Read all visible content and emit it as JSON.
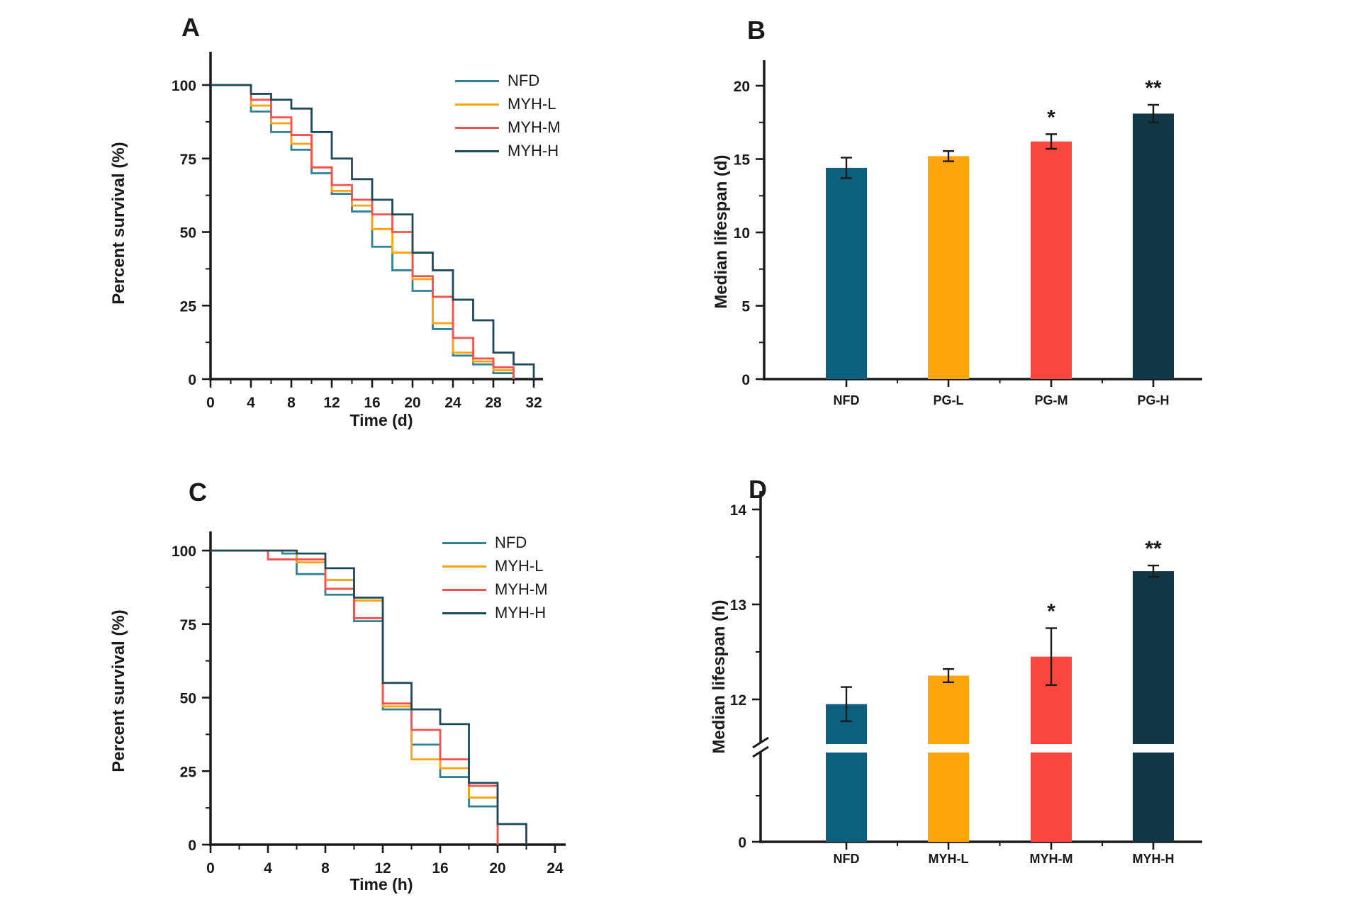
{
  "figure": {
    "background": "#ffffff",
    "description": "Four-panel lifespan figure: survival curves and median lifespan bar charts"
  },
  "colors": {
    "teal_line": "#2E8396",
    "orange": "#FFA40D",
    "red": "#F9504B",
    "navy_line": "#1E4A5C",
    "teal_bar": "#0C5F7D",
    "red_bar": "#F9473F",
    "navy_bar": "#123848",
    "axis": "#1a1a1a"
  },
  "chart_data": [
    {
      "panel_label": "A",
      "type": "line",
      "subtype": "survival-step",
      "xlabel": "Time (d)",
      "ylabel": "Percent survival (%)",
      "xlim": [
        0,
        32
      ],
      "ylim": [
        0,
        100
      ],
      "xticks": [
        0,
        4,
        8,
        12,
        16,
        20,
        24,
        28,
        32
      ],
      "yticks": [
        0,
        25,
        50,
        75,
        100
      ],
      "grid": false,
      "legend_position": "top-right",
      "series": [
        {
          "name": "NFD",
          "color": "#2E8396",
          "points": [
            [
              0,
              100
            ],
            [
              4,
              91
            ],
            [
              6,
              84
            ],
            [
              8,
              78
            ],
            [
              10,
              70
            ],
            [
              12,
              63
            ],
            [
              14,
              57
            ],
            [
              16,
              45
            ],
            [
              18,
              37
            ],
            [
              20,
              30
            ],
            [
              22,
              17
            ],
            [
              24,
              8
            ],
            [
              26,
              5
            ],
            [
              28,
              2
            ],
            [
              30,
              0
            ]
          ]
        },
        {
          "name": "MYH-L",
          "color": "#FFA40D",
          "points": [
            [
              0,
              100
            ],
            [
              4,
              93
            ],
            [
              6,
              87
            ],
            [
              8,
              80
            ],
            [
              10,
              72
            ],
            [
              12,
              64
            ],
            [
              14,
              59
            ],
            [
              16,
              51
            ],
            [
              18,
              43
            ],
            [
              20,
              34
            ],
            [
              22,
              19
            ],
            [
              24,
              9
            ],
            [
              26,
              6
            ],
            [
              28,
              3
            ],
            [
              30,
              0
            ]
          ]
        },
        {
          "name": "MYH-M",
          "color": "#F9504B",
          "points": [
            [
              0,
              100
            ],
            [
              4,
              95
            ],
            [
              6,
              89
            ],
            [
              8,
              83
            ],
            [
              10,
              72
            ],
            [
              12,
              66
            ],
            [
              14,
              61
            ],
            [
              16,
              56
            ],
            [
              18,
              50
            ],
            [
              20,
              35
            ],
            [
              22,
              28
            ],
            [
              24,
              14
            ],
            [
              26,
              7
            ],
            [
              28,
              4
            ],
            [
              30,
              0
            ]
          ]
        },
        {
          "name": "MYH-H",
          "color": "#1E4A5C",
          "points": [
            [
              0,
              100
            ],
            [
              4,
              97
            ],
            [
              6,
              95
            ],
            [
              8,
              92
            ],
            [
              10,
              84
            ],
            [
              12,
              75
            ],
            [
              14,
              68
            ],
            [
              16,
              61
            ],
            [
              18,
              56
            ],
            [
              20,
              43
            ],
            [
              22,
              37
            ],
            [
              24,
              27
            ],
            [
              26,
              20
            ],
            [
              28,
              9
            ],
            [
              30,
              5
            ],
            [
              32,
              0
            ]
          ]
        }
      ]
    },
    {
      "panel_label": "B",
      "type": "bar",
      "xlabel": "",
      "ylabel": "Median lifespan (d)",
      "categories": [
        "NFD",
        "PG-L",
        "PG-M",
        "PG-H"
      ],
      "values": [
        14.4,
        15.2,
        16.2,
        18.1
      ],
      "errors": [
        0.7,
        0.35,
        0.5,
        0.6
      ],
      "significance": [
        "",
        "",
        "*",
        "**"
      ],
      "bar_colors": [
        "#0C5F7D",
        "#FFA40D",
        "#F9473F",
        "#123848"
      ],
      "ylim": [
        0,
        22
      ],
      "yticks": [
        0,
        5,
        10,
        15,
        20
      ],
      "grid": false
    },
    {
      "panel_label": "C",
      "type": "line",
      "subtype": "survival-step",
      "xlabel": "Time (h)",
      "ylabel": "Percent survival (%)",
      "xlim": [
        0,
        24
      ],
      "ylim": [
        0,
        100
      ],
      "xticks": [
        0,
        4,
        8,
        12,
        16,
        20,
        24
      ],
      "yticks": [
        0,
        25,
        50,
        75,
        100
      ],
      "grid": false,
      "legend_position": "top-right",
      "series": [
        {
          "name": "NFD",
          "color": "#2E8396",
          "points": [
            [
              0,
              100
            ],
            [
              5,
              99
            ],
            [
              6,
              92
            ],
            [
              8,
              85
            ],
            [
              10,
              76
            ],
            [
              12,
              46
            ],
            [
              14,
              34
            ],
            [
              16,
              23
            ],
            [
              18,
              13
            ],
            [
              20,
              0
            ]
          ]
        },
        {
          "name": "MYH-L",
          "color": "#FFA40D",
          "points": [
            [
              0,
              100
            ],
            [
              6,
              96
            ],
            [
              8,
              90
            ],
            [
              10,
              83
            ],
            [
              12,
              47
            ],
            [
              14,
              29
            ],
            [
              16,
              26
            ],
            [
              18,
              16
            ],
            [
              20,
              0
            ]
          ]
        },
        {
          "name": "MYH-M",
          "color": "#F9504B",
          "points": [
            [
              0,
              100
            ],
            [
              4,
              97
            ],
            [
              8,
              87
            ],
            [
              10,
              77
            ],
            [
              12,
              48
            ],
            [
              14,
              39
            ],
            [
              16,
              29
            ],
            [
              18,
              20
            ],
            [
              20,
              0
            ]
          ]
        },
        {
          "name": "MYH-H",
          "color": "#1E4A5C",
          "points": [
            [
              0,
              100
            ],
            [
              6,
              99
            ],
            [
              8,
              94
            ],
            [
              10,
              84
            ],
            [
              12,
              55
            ],
            [
              14,
              46
            ],
            [
              16,
              41
            ],
            [
              18,
              21
            ],
            [
              20,
              7
            ],
            [
              22,
              0
            ]
          ]
        }
      ]
    },
    {
      "panel_label": "D",
      "type": "bar",
      "xlabel": "",
      "ylabel": "Median lifespan (h)",
      "categories": [
        "NFD",
        "MYH-L",
        "MYH-M",
        "MYH-H"
      ],
      "values": [
        11.95,
        12.25,
        12.45,
        13.35
      ],
      "errors": [
        0.18,
        0.07,
        0.3,
        0.06
      ],
      "significance": [
        "",
        "",
        "*",
        "**"
      ],
      "bar_colors": [
        "#0C5F7D",
        "#FFA40D",
        "#F9473F",
        "#123848"
      ],
      "ylim": [
        0,
        14
      ],
      "yticks": [
        0,
        12,
        13,
        14
      ],
      "axis_break": {
        "hidden_range": [
          0.5,
          11.55
        ]
      },
      "grid": false
    }
  ]
}
